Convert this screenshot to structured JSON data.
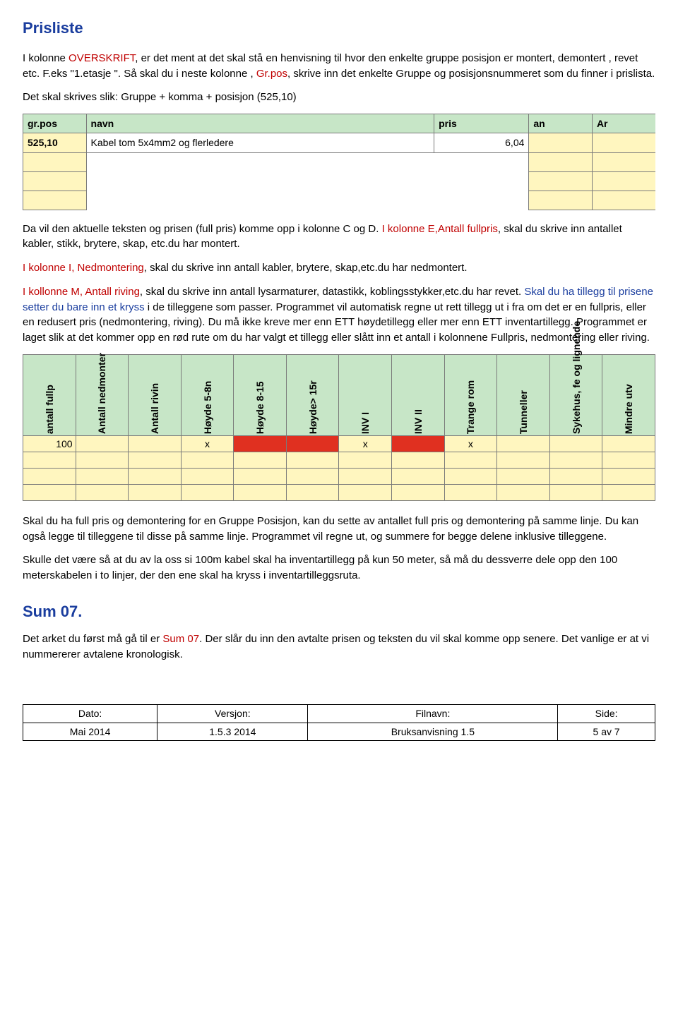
{
  "title": "Prisliste",
  "para1_pre": "I kolonne ",
  "para1_red1": "OVERSKRIFT",
  "para1_mid": ", er det ment at det skal stå en henvisning til hvor den enkelte gruppe posisjon er montert, demontert , revet etc. F.eks \"1.etasje \". Så skal du i neste kolonne , ",
  "para1_red2": "Gr.pos",
  "para1_end": ", skrive inn det enkelte Gruppe og posisjonsnummeret som du finner i prislista.",
  "para2": "Det skal skrives slik: Gruppe + komma + posisjon (525,10)",
  "tbl1_headers": [
    "gr.pos",
    "navn",
    "pris",
    "an",
    "Ar"
  ],
  "tbl1_row1_grpos": "525,10",
  "tbl1_row1_navn": "Kabel tom 5x4mm2 og flerledere",
  "tbl1_row1_pris": "6,04",
  "para3_pre": "Da vil den aktuelle teksten og prisen (full pris) komme opp i kolonne C og D. ",
  "para3_red1": "I kolonne E,Antall fullpris",
  "para3_mid1": ", skal du skrive inn antallet kabler, stikk, brytere, skap, etc.du har montert.",
  "para4_red": "I kolonne I, Nedmontering",
  "para4_rest": ", skal du skrive inn antall kabler, brytere, skap,etc.du har nedmontert.",
  "para5_red": "I kollonne M, Antall riving",
  "para5_mid": ", skal du skrive inn antall lysarmaturer, datastikk, koblingsstykker,etc.du har revet. ",
  "para5_blue": "Skal du ha tillegg til prisene setter du bare inn et kryss",
  "para5_rest": " i de tilleggene som passer. Programmet vil automatisk regne ut rett tillegg ut i fra om det er en fullpris, eller en redusert pris (nedmontering, riving). Du må ikke kreve mer enn ETT høydetillegg eller mer enn ETT inventartillegg. Programmet er laget slik at det kommer opp en rød rute om du har valgt et tillegg eller slått inn et antall i kolonnene Fullpris, nedmontering eller riving.",
  "tbl2_headers": [
    "antall fullp",
    "Antall nedmonter",
    "Antall rivin",
    "Høyde 5-8n",
    "Høyde 8-15",
    "Høyde> 15r",
    "INV I",
    "INV II",
    "Trange rom",
    "Tunneller",
    "Sykehus, fe og lignende",
    "Mindre utv"
  ],
  "tbl2_row1_val": "100",
  "tbl2_row1_x": "x",
  "para6": "Skal du ha full pris og demontering for en Gruppe Posisjon, kan du sette av antallet full pris og demontering på samme linje. Du kan også legge til tilleggene til disse på samme linje. Programmet vil regne ut, og summere for begge delene inklusive tilleggene.",
  "para7": "Skulle det være så at du av la oss si 100m kabel skal ha inventartillegg på kun 50 meter, så må du dessverre dele opp den 100 meterskabelen i to linjer, der den ene skal ha kryss i inventartilleggsruta.",
  "sum07_heading": "Sum 07.",
  "sum07_p_pre": "Det arket du først må gå til er ",
  "sum07_p_red": "Sum 07",
  "sum07_p_rest": ". Der slår du inn den avtalte prisen og teksten du vil skal komme opp senere. Det vanlige er at vi nummererer avtalene kronologisk.",
  "footer": {
    "h1": "Dato:",
    "v1": "Mai 2014",
    "h2": "Versjon:",
    "v2": "1.5.3 2014",
    "h3": "Filnavn:",
    "v3": "Bruksanvisning 1.5",
    "h4": "Side:",
    "v4": "5 av 7"
  }
}
